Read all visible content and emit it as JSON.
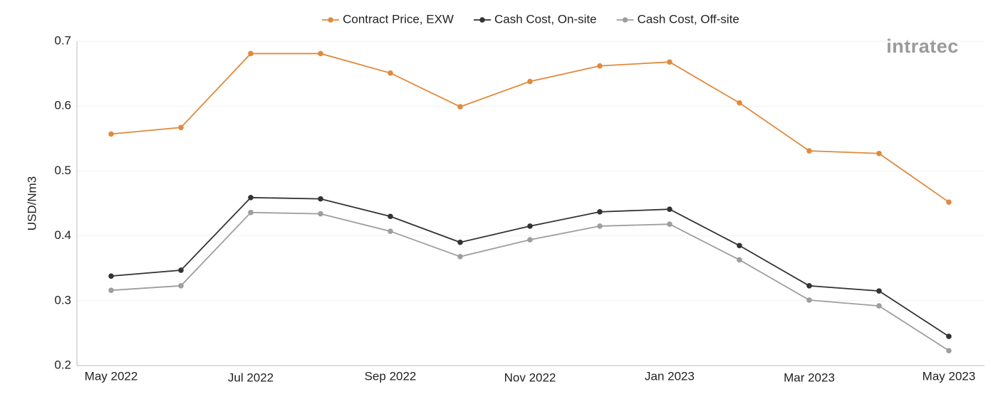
{
  "chart_data": {
    "type": "line",
    "watermark": "intratec",
    "y_label": "USD/Nm3",
    "categories": [
      "May 2022",
      null,
      "Jul 2022",
      null,
      "Sep 2022",
      null,
      "Nov 2022",
      null,
      "Jan 2023",
      null,
      "Mar 2023",
      null,
      "May 2023"
    ],
    "series": [
      {
        "name": "Contract Price, EXW",
        "color": "#e08a3c",
        "values": [
          0.557,
          0.567,
          0.681,
          0.681,
          0.651,
          0.599,
          0.638,
          0.662,
          0.668,
          0.605,
          0.531,
          0.527,
          0.452
        ]
      },
      {
        "name": "Cash Cost, On-site",
        "color": "#333333",
        "values": [
          0.338,
          0.347,
          0.459,
          0.457,
          0.43,
          0.39,
          0.415,
          0.437,
          0.441,
          0.385,
          0.323,
          0.315,
          0.245
        ]
      },
      {
        "name": "Cash Cost, Off-site",
        "color": "#9e9e9e",
        "values": [
          0.316,
          0.323,
          0.436,
          0.434,
          0.407,
          0.368,
          0.394,
          0.415,
          0.418,
          0.363,
          0.301,
          0.292,
          0.223
        ]
      }
    ],
    "ylim": [
      0.2,
      0.7
    ],
    "yticks": [
      0.2,
      0.3,
      0.4,
      0.5,
      0.6,
      0.7
    ],
    "grid": true,
    "legend": "top"
  }
}
